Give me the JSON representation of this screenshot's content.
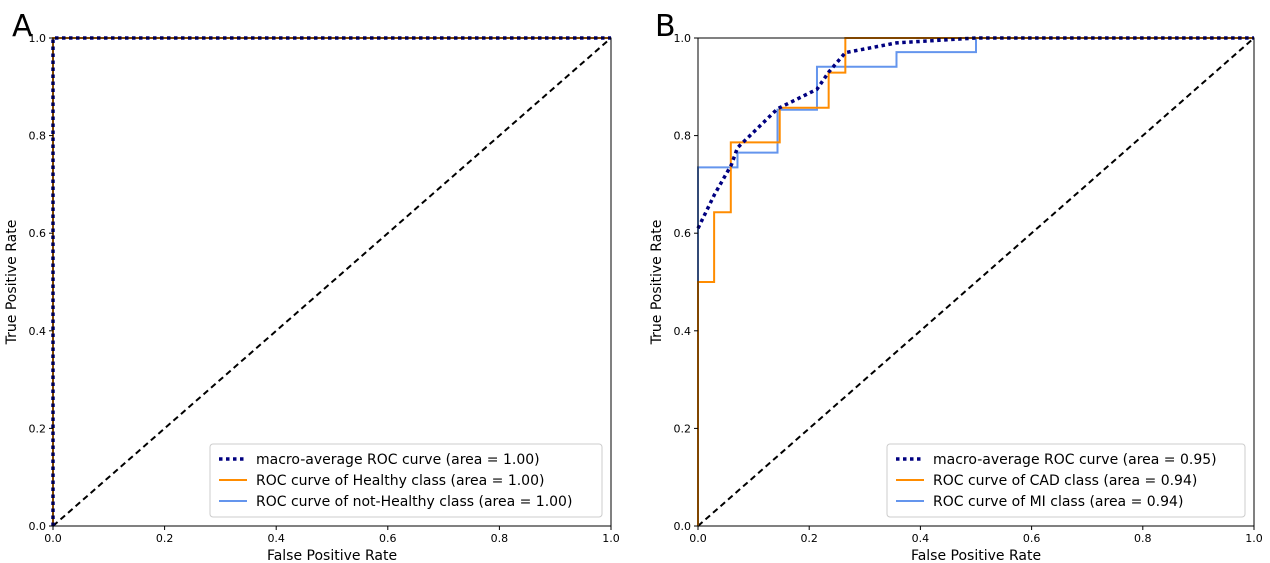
{
  "chart_data": [
    {
      "panel_label": "A",
      "type": "line",
      "xlabel": "False Positive Rate",
      "ylabel": "True Positive Rate",
      "xlim": [
        0.0,
        1.0
      ],
      "ylim": [
        0.0,
        1.0
      ],
      "x_ticks": [
        "0.0",
        "0.2",
        "0.4",
        "0.6",
        "0.8",
        "1.0"
      ],
      "y_ticks": [
        "0.0",
        "0.2",
        "0.4",
        "0.6",
        "0.8",
        "1.0"
      ],
      "grid": false,
      "legend_position": "lower-right",
      "series": [
        {
          "name": "macro-average ROC curve (area = 1.00)",
          "color": "#000080",
          "style": "dotted",
          "x": [
            0.0,
            0.0,
            1.0
          ],
          "y": [
            0.0,
            1.0,
            1.0
          ]
        },
        {
          "name": "ROC curve of Healthy class (area = 1.00)",
          "color": "#ff8c00",
          "style": "solid",
          "x": [
            0.0,
            0.0,
            1.0
          ],
          "y": [
            0.0,
            1.0,
            1.0
          ]
        },
        {
          "name": "ROC curve of not-Healthy class (area = 1.00)",
          "color": "#6495ed",
          "style": "solid",
          "x": [
            0.0,
            0.0,
            1.0
          ],
          "y": [
            0.0,
            1.0,
            1.0
          ]
        }
      ],
      "diagonal": {
        "x": [
          0.0,
          1.0
        ],
        "y": [
          0.0,
          1.0
        ],
        "color": "#000000",
        "style": "dashed"
      }
    },
    {
      "panel_label": "B",
      "type": "line",
      "xlabel": "False Positive Rate",
      "ylabel": "True Positive Rate",
      "xlim": [
        0.0,
        1.0
      ],
      "ylim": [
        0.0,
        1.0
      ],
      "x_ticks": [
        "0.0",
        "0.2",
        "0.4",
        "0.6",
        "0.8",
        "1.0"
      ],
      "y_ticks": [
        "0.0",
        "0.2",
        "0.4",
        "0.6",
        "0.8",
        "1.0"
      ],
      "grid": false,
      "legend_position": "lower-right",
      "series": [
        {
          "name": "macro-average ROC curve (area = 0.95)",
          "color": "#000080",
          "style": "dotted",
          "x": [
            0.0,
            0.03,
            0.06,
            0.071,
            0.143,
            0.214,
            0.235,
            0.265,
            0.357,
            0.5,
            1.0
          ],
          "y": [
            0.61,
            0.68,
            0.74,
            0.775,
            0.855,
            0.895,
            0.93,
            0.97,
            0.99,
            1.0,
            1.0
          ]
        },
        {
          "name": "ROC curve of CAD class (area = 0.94)",
          "color": "#ff8c00",
          "style": "solid",
          "x": [
            0.0,
            0.0,
            0.029,
            0.029,
            0.059,
            0.059,
            0.147,
            0.147,
            0.235,
            0.235,
            0.265,
            0.265,
            0.5,
            1.0
          ],
          "y": [
            0.0,
            0.5,
            0.5,
            0.643,
            0.643,
            0.786,
            0.786,
            0.857,
            0.857,
            0.929,
            0.929,
            1.0,
            1.0,
            1.0
          ]
        },
        {
          "name": "ROC curve of MI class (area = 0.94)",
          "color": "#6495ed",
          "style": "solid",
          "x": [
            0.0,
            0.0,
            0.071,
            0.071,
            0.143,
            0.143,
            0.214,
            0.214,
            0.357,
            0.357,
            0.5,
            0.5,
            1.0
          ],
          "y": [
            0.0,
            0.735,
            0.735,
            0.765,
            0.765,
            0.853,
            0.853,
            0.941,
            0.941,
            0.971,
            0.971,
            1.0,
            1.0
          ]
        }
      ],
      "diagonal": {
        "x": [
          0.0,
          1.0
        ],
        "y": [
          0.0,
          1.0
        ],
        "color": "#000000",
        "style": "dashed"
      }
    }
  ]
}
